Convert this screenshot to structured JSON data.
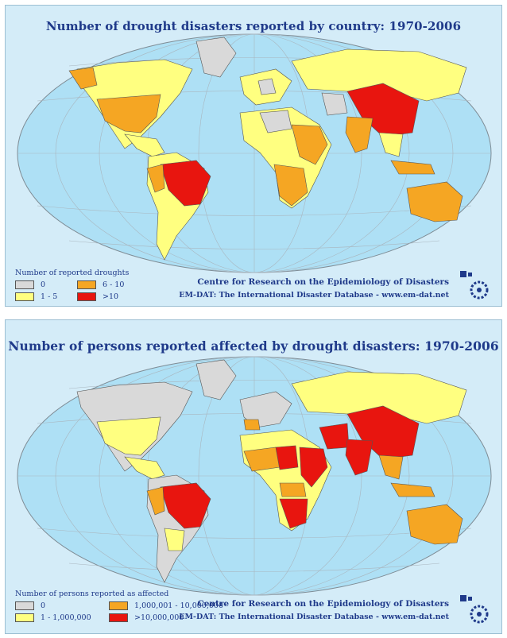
{
  "maps": [
    {
      "title": "Number of drought disasters reported by country: 1970-2006",
      "legend_title": "Number of reported droughts",
      "legend": [
        {
          "label": "0",
          "color": "#d9d9d9"
        },
        {
          "label": "1 - 5",
          "color": "#ffff80"
        },
        {
          "label": "6 - 10",
          "color": "#f5a623"
        },
        {
          "label": ">10",
          "color": "#e8150f"
        }
      ],
      "credit_line1": "Centre for Research on the Epidemiology of Disasters",
      "credit_line2": "EM-DAT: The International Disaster Database - www.em-dat.net"
    },
    {
      "title": "Number of persons reported affected by drought disasters: 1970-2006",
      "legend_title": "Number of persons reported as affected",
      "legend": [
        {
          "label": "0",
          "color": "#d9d9d9"
        },
        {
          "label": "1 - 1,000,000",
          "color": "#ffff80"
        },
        {
          "label": "1,000,001 - 10,000,000",
          "color": "#f5a623"
        },
        {
          "label": ">10,000,000",
          "color": "#e8150f"
        }
      ],
      "credit_line1": "Centre for Research on the Epidemiology of Disasters",
      "credit_line2": "EM-DAT: The International Disaster Database - www.em-dat.net"
    }
  ],
  "colors": {
    "ocean": "#aee0f5",
    "background": "#d4ecf8",
    "grid": "#9aa7b0",
    "title_text": "#1f3a8a"
  }
}
